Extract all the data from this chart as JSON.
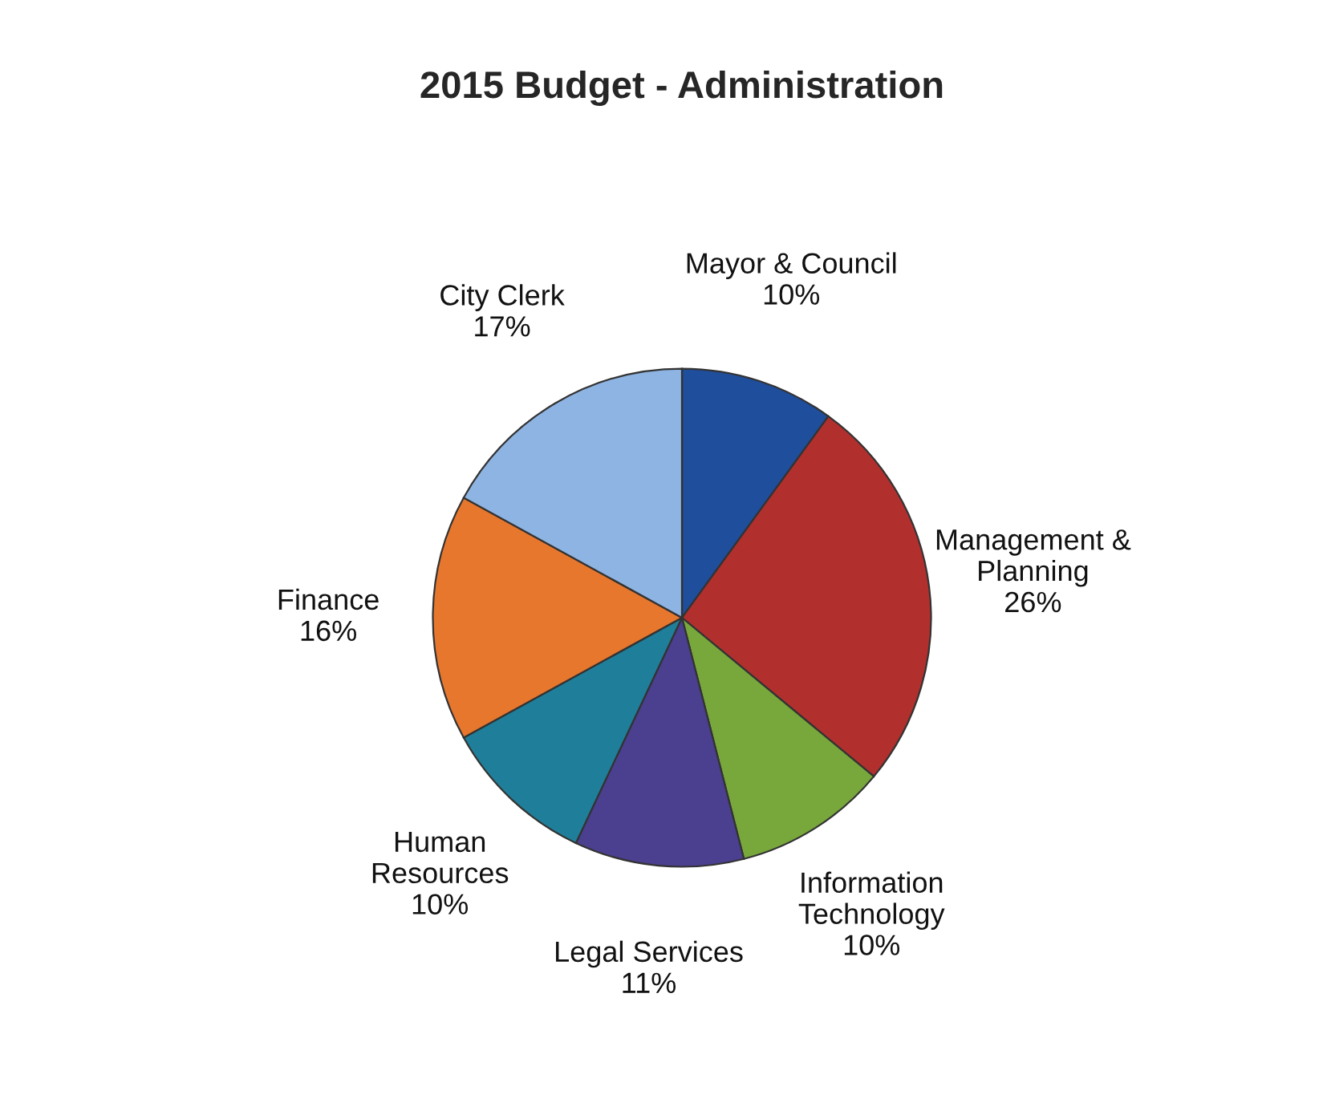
{
  "chart_data": {
    "type": "pie",
    "title": "2015 Budget - Administration",
    "categories": [
      "Mayor & Council",
      "Management &\nPlanning",
      "Information\nTechnology",
      "Legal Services",
      "Human\nResources",
      "Finance",
      "City Clerk"
    ],
    "values": [
      10,
      26,
      10,
      11,
      10,
      16,
      17
    ],
    "value_labels": [
      "10%",
      "26%",
      "10%",
      "11%",
      "10%",
      "16%",
      "17%"
    ],
    "colors": [
      "#1f4e9c",
      "#b1302e",
      "#78a83b",
      "#4b3f8f",
      "#1f7f9a",
      "#e8772e",
      "#8eb4e3"
    ]
  }
}
